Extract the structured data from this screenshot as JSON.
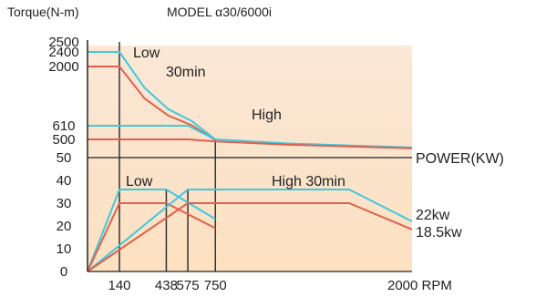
{
  "header": {
    "ylabel": "Torque(N-m)",
    "model": "MODEL α30/6000i"
  },
  "chart_data": [
    {
      "type": "line",
      "title": "MODEL α30/6000i",
      "ylabel": "Torque(N-m)",
      "yticks": [
        "2500",
        "2400",
        "2000",
        "610",
        "500",
        "50"
      ],
      "ytick_values": [
        2500,
        2400,
        2000,
        610,
        500,
        50
      ],
      "ylim_display": [
        50,
        2500
      ],
      "xlim": [
        0,
        2000
      ],
      "annotations": [
        "Low",
        "30min",
        "High"
      ],
      "colors": {
        "cyan": "#3fc8df",
        "red": "#e0604d"
      },
      "series": [
        {
          "name": "Low 30min",
          "color": "#3fc8df",
          "x": [
            0,
            140,
            140,
            300,
            450,
            600,
            750
          ],
          "y": [
            2400,
            2400,
            2400,
            1500,
            1000,
            720,
            500
          ]
        },
        {
          "name": "Low",
          "color": "#e0604d",
          "x": [
            0,
            140,
            140,
            300,
            450,
            600,
            750
          ],
          "y": [
            2000,
            2000,
            2000,
            1250,
            850,
            620,
            480
          ]
        },
        {
          "name": "High 30min",
          "color": "#3fc8df",
          "x": [
            0,
            140,
            575,
            750,
            1200,
            2000
          ],
          "y": [
            610,
            610,
            610,
            500,
            400,
            300
          ]
        },
        {
          "name": "High",
          "color": "#e0604d",
          "x": [
            0,
            140,
            575,
            750,
            1200,
            2000
          ],
          "y": [
            500,
            500,
            500,
            450,
            370,
            280
          ]
        }
      ]
    },
    {
      "type": "line",
      "ylabel": "POWER(KW)",
      "xlabel": "RPM",
      "xticks": [
        "140",
        "438",
        "575",
        "750",
        "2000 RPM"
      ],
      "xtick_values": [
        140,
        438,
        575,
        750,
        2000
      ],
      "yticks": [
        "0",
        "10",
        "20",
        "30",
        "40",
        "50"
      ],
      "ylim": [
        0,
        50
      ],
      "xlim": [
        0,
        2000
      ],
      "annotations": [
        "Low",
        "High  30min",
        "22kw",
        "18.5kw"
      ],
      "series": [
        {
          "name": "Low 30min",
          "color": "#3fc8df",
          "x": [
            0,
            140,
            438,
            750
          ],
          "y": [
            0,
            36,
            36,
            23
          ]
        },
        {
          "name": "Low",
          "color": "#e0604d",
          "x": [
            0,
            140,
            438,
            750
          ],
          "y": [
            0,
            30,
            30,
            19
          ]
        },
        {
          "name": "High 30min",
          "color": "#3fc8df",
          "x": [
            0,
            575,
            1600,
            2000
          ],
          "y": [
            0,
            36,
            36,
            22
          ]
        },
        {
          "name": "High",
          "color": "#e0604d",
          "x": [
            0,
            575,
            1600,
            2000
          ],
          "y": [
            0,
            30,
            30,
            18.5
          ]
        }
      ]
    }
  ]
}
